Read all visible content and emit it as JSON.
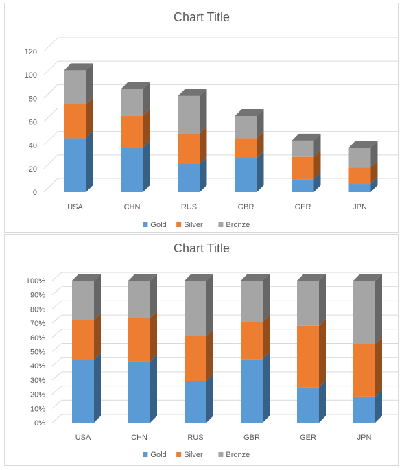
{
  "chart_data": [
    {
      "type": "bar",
      "variant": "stacked-3d",
      "title": "Chart Title",
      "categories": [
        "USA",
        "CHN",
        "RUS",
        "GBR",
        "GER",
        "JPN"
      ],
      "series": [
        {
          "name": "Gold",
          "values": [
            46,
            38,
            24,
            29,
            11,
            7
          ],
          "color": "#5b9bd5"
        },
        {
          "name": "Silver",
          "values": [
            29,
            27,
            26,
            17,
            19,
            14
          ],
          "color": "#ed7d31"
        },
        {
          "name": "Bronze",
          "values": [
            29,
            23,
            32,
            19,
            14,
            17
          ],
          "color": "#a5a5a5"
        }
      ],
      "yticks": [
        "0",
        "20",
        "40",
        "60",
        "80",
        "100",
        "120"
      ],
      "ylim": [
        0,
        120
      ],
      "grid": true,
      "legend": "bottom"
    },
    {
      "type": "bar",
      "variant": "100%-stacked-3d",
      "title": "Chart Title",
      "categories": [
        "USA",
        "CHN",
        "RUS",
        "GBR",
        "GER",
        "JPN"
      ],
      "series": [
        {
          "name": "Gold",
          "values": [
            46,
            38,
            24,
            29,
            11,
            7
          ],
          "color": "#5b9bd5"
        },
        {
          "name": "Silver",
          "values": [
            29,
            27,
            26,
            17,
            19,
            14
          ],
          "color": "#ed7d31"
        },
        {
          "name": "Bronze",
          "values": [
            29,
            23,
            32,
            19,
            14,
            17
          ],
          "color": "#a5a5a5"
        }
      ],
      "yticks": [
        "0%",
        "10%",
        "20%",
        "30%",
        "40%",
        "50%",
        "60%",
        "70%",
        "80%",
        "90%",
        "100%"
      ],
      "ylim": [
        0,
        1
      ],
      "grid": true,
      "legend": "bottom"
    }
  ]
}
